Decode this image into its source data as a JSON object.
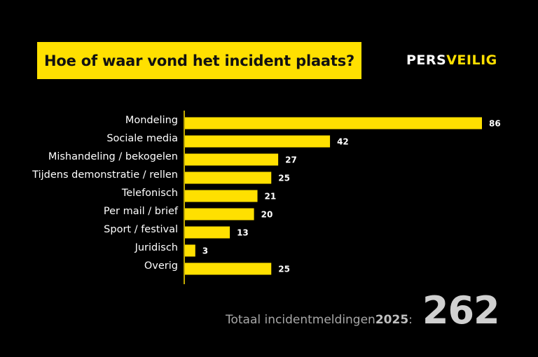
{
  "header": {
    "title": "Hoe of waar vond het incident plaats?",
    "logo_part_a": "PERS",
    "logo_part_b": "VEILIG"
  },
  "colors": {
    "background": "#000000",
    "accent": "#ffe000",
    "label_text": "#ffffff"
  },
  "chart_data": {
    "type": "bar",
    "orientation": "horizontal",
    "title": "Hoe of waar vond het incident plaats?",
    "xlabel": "",
    "ylabel": "",
    "categories": [
      "Mondeling",
      "Sociale media",
      "Mishandeling / bekogelen",
      "Tijdens demonstratie / rellen",
      "Telefonisch",
      "Per mail / brief",
      "Sport / festival",
      "Juridisch",
      "Overig"
    ],
    "values": [
      86,
      42,
      27,
      25,
      21,
      20,
      13,
      3,
      25
    ],
    "xlim": [
      0,
      86
    ],
    "data_labels": true,
    "grid": false
  },
  "footer": {
    "total_label": "Totaal incidentmeldingen ",
    "total_year": "2025",
    "total_colon": ":",
    "total_value": "262"
  }
}
